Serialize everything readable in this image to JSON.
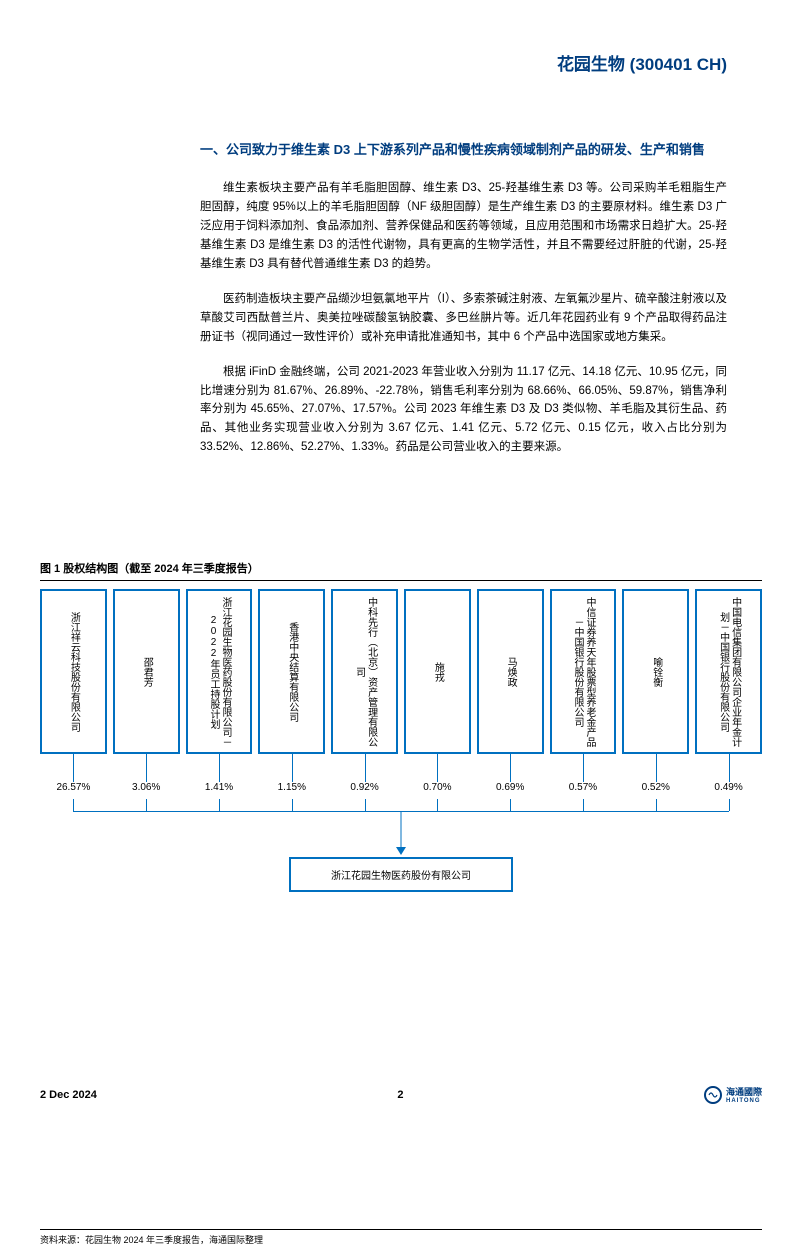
{
  "header": {
    "company_title": "花园生物 (300401 CH)"
  },
  "section": {
    "heading": "一、公司致力于维生素 D3 上下游系列产品和慢性疾病领域制剂产品的研发、生产和销售",
    "para1": "维生素板块主要产品有羊毛脂胆固醇、维生素 D3、25-羟基维生素 D3 等。公司采购羊毛粗脂生产胆固醇，纯度 95%以上的羊毛脂胆固醇（NF 级胆固醇）是生产维生素 D3 的主要原材料。维生素 D3 广泛应用于饲料添加剂、食品添加剂、营养保健品和医药等领域，且应用范围和市场需求日趋扩大。25-羟基维生素 D3 是维生素 D3 的活性代谢物，具有更高的生物学活性，并且不需要经过肝脏的代谢，25-羟基维生素 D3 具有替代普通维生素 D3 的趋势。",
    "para2": "医药制造板块主要产品缬沙坦氨氯地平片（I）、多索茶碱注射液、左氧氟沙星片、硫辛酸注射液以及草酸艾司西酞普兰片、奥美拉唑碳酸氢钠胶囊、多巴丝肼片等。近几年花园药业有 9 个产品取得药品注册证书（视同通过一致性评价）或补充申请批准通知书，其中 6 个产品中选国家或地方集采。",
    "para3": "根据 iFinD 金融终端，公司 2021-2023 年营业收入分别为 11.17 亿元、14.18 亿元、10.95 亿元，同比增速分别为 81.67%、26.89%、-22.78%，销售毛利率分别为 68.66%、66.05%、59.87%，销售净利率分别为 45.65%、27.07%、17.57%。公司 2023 年维生素 D3 及 D3 类似物、羊毛脂及其衍生品、药品、其他业务实现营业收入分别为 3.67 亿元、1.41 亿元、5.72 亿元、0.15 亿元，收入占比分别为 33.52%、12.86%、52.27%、1.33%。药品是公司营业收入的主要来源。"
  },
  "chart": {
    "title": "图 1 股权结构图（截至 2024 年三季度报告）",
    "border_color": "#0070c0",
    "box_bg": "#ffffff",
    "text_color": "#000000",
    "font_size": 10,
    "shareholders": [
      {
        "name": "浙江祥云科技股份有限公司",
        "pct": "26.57%"
      },
      {
        "name": "邵君芳",
        "pct": "3.06%"
      },
      {
        "name": "浙江花园生物医药股份有限公司－2022年员工持股计划",
        "pct": "1.41%"
      },
      {
        "name": "香港中央结算有限公司",
        "pct": "1.15%"
      },
      {
        "name": "中科先行（北京）资产管理有限公司",
        "pct": "0.92%"
      },
      {
        "name": "施戎",
        "pct": "0.70%"
      },
      {
        "name": "马焕政",
        "pct": "0.69%"
      },
      {
        "name": "中信证券养天年股票型养老金产品－中国银行股份有限公司",
        "pct": "0.57%"
      },
      {
        "name": "喻铨衡",
        "pct": "0.52%"
      },
      {
        "name": "中国电信集团有限公司企业年金计划－中国银行股份有限公司",
        "pct": "0.49%"
      }
    ],
    "target": "浙江花园生物医药股份有限公司",
    "source": "资料来源：花园生物 2024 年三季度报告，海通国际整理"
  },
  "footer": {
    "date": "2 Dec 2024",
    "page": "2",
    "logo_text": "海通國際",
    "logo_brand": "HAITONG"
  }
}
